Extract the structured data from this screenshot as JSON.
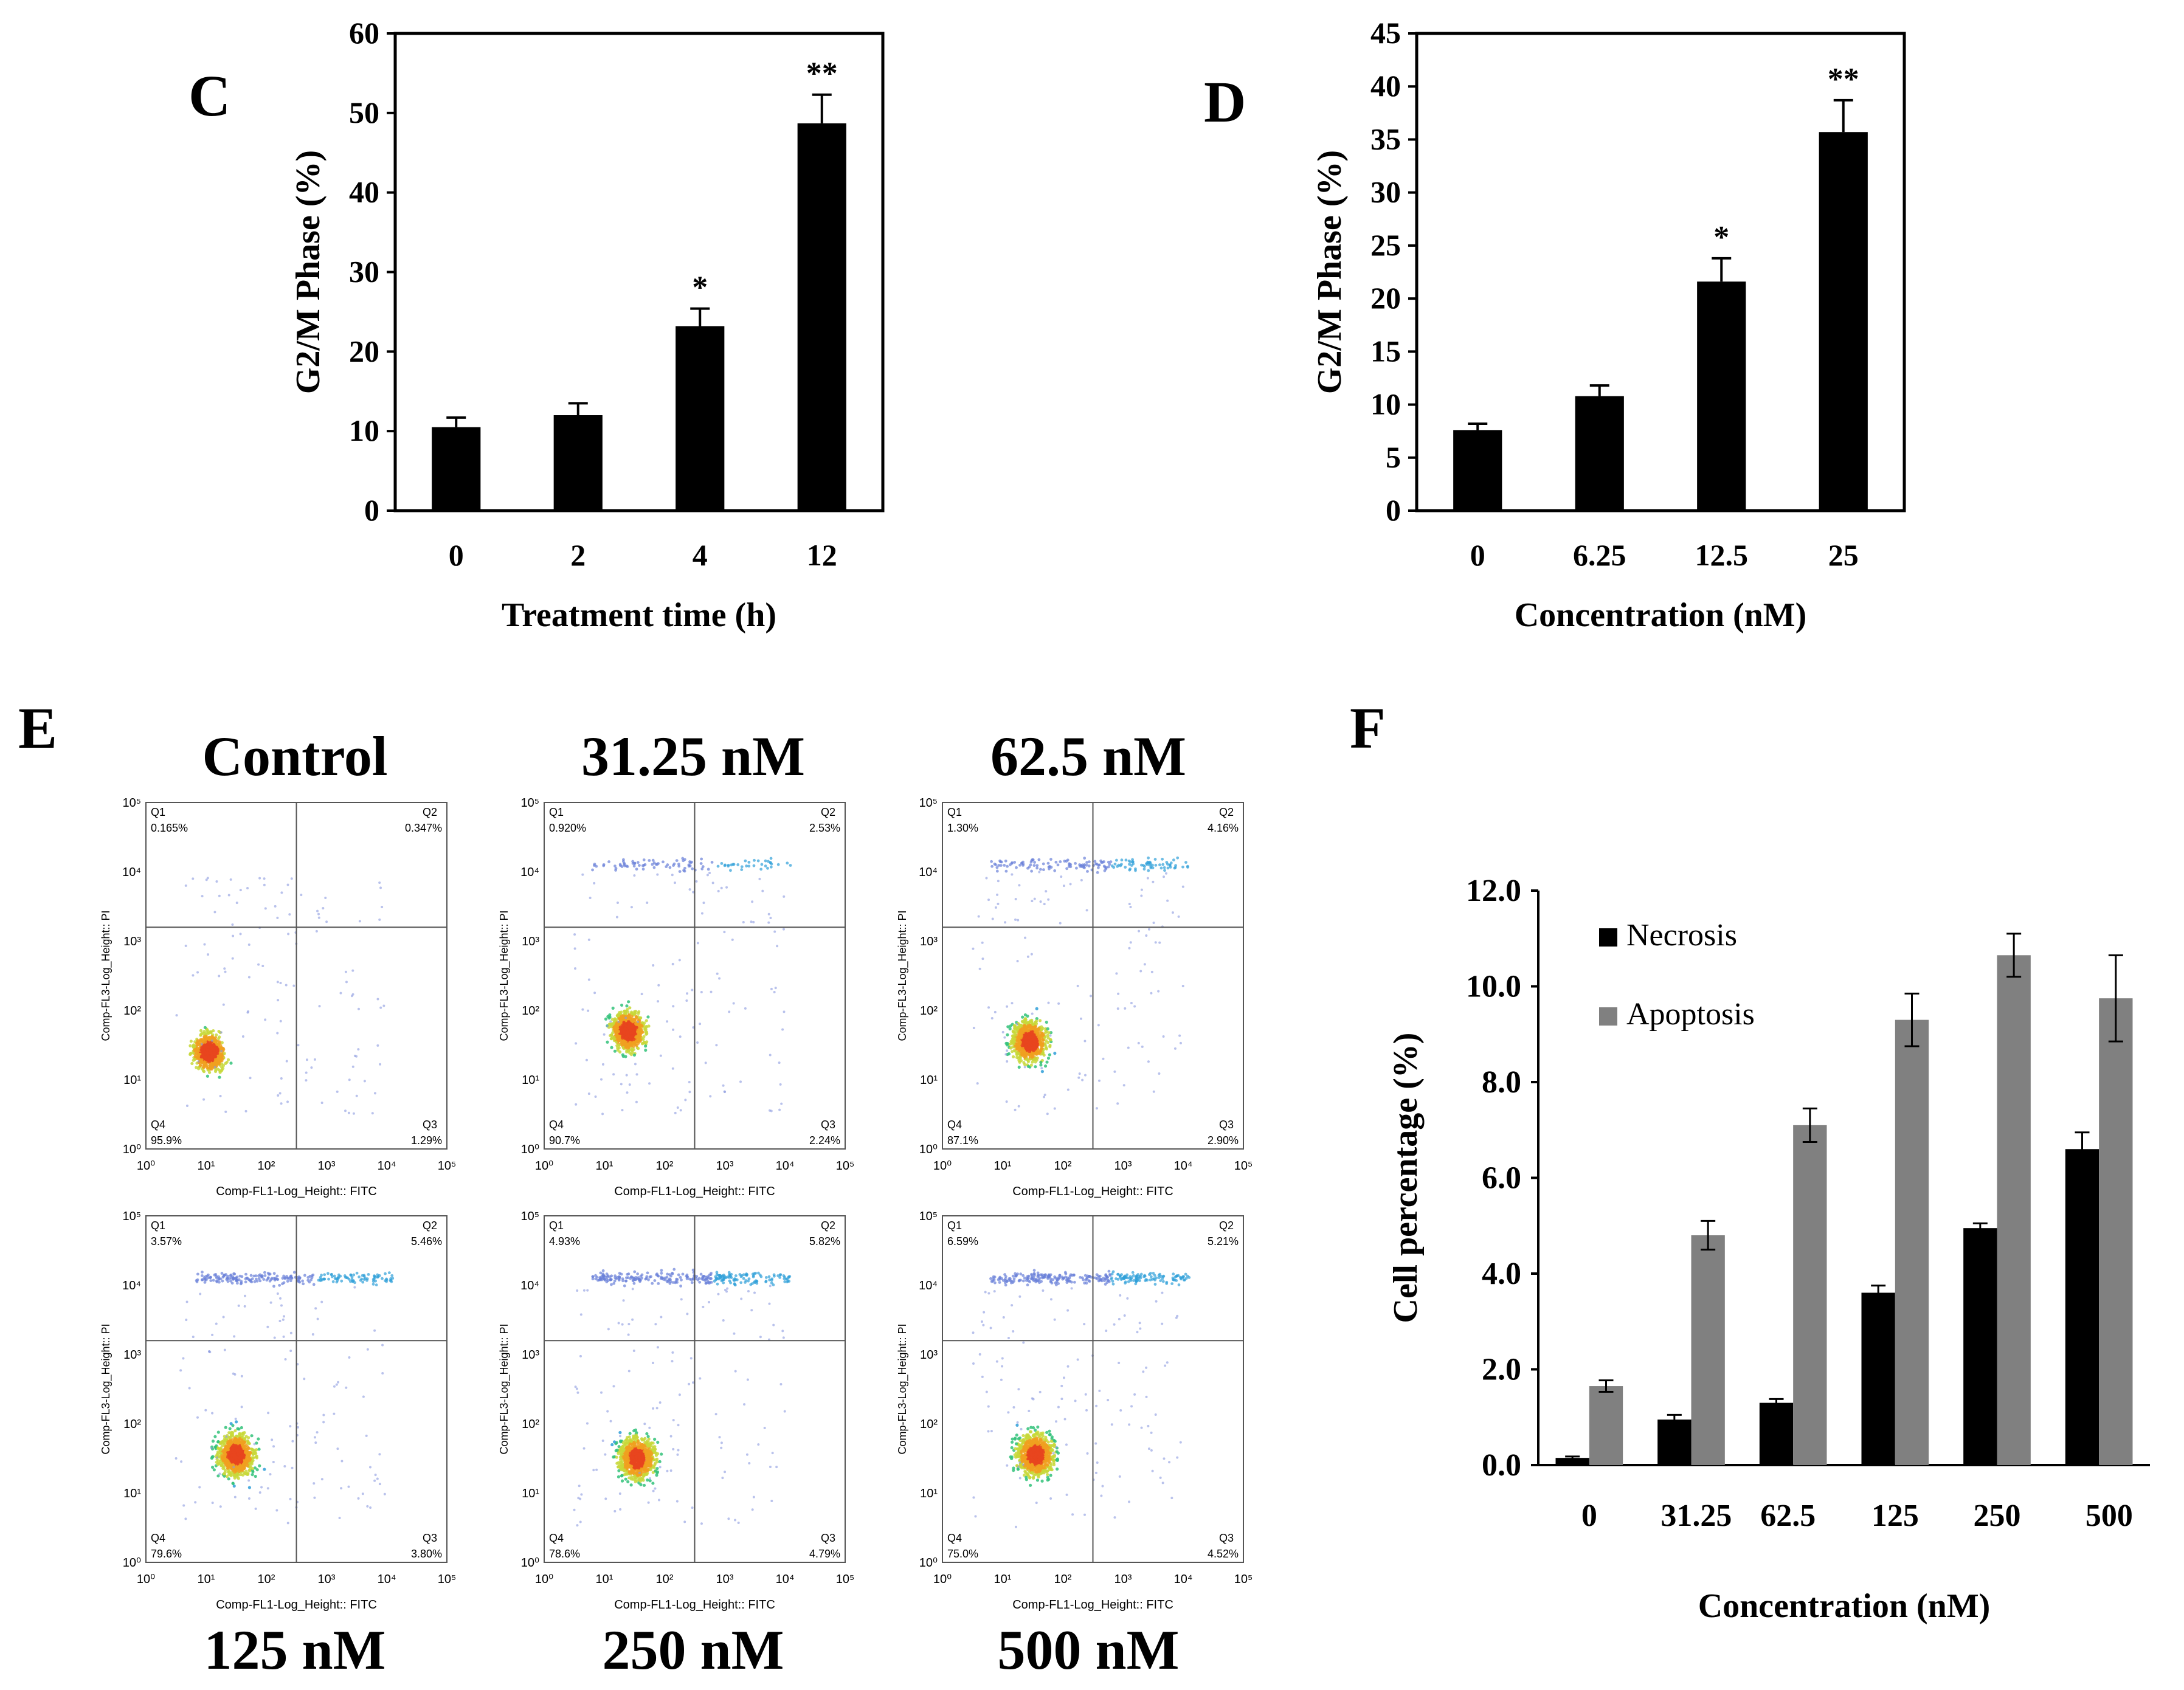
{
  "panels": {
    "C": "C",
    "D": "D",
    "E": "E",
    "F": "F"
  },
  "chart_data": [
    {
      "id": "C",
      "type": "bar",
      "categories": [
        "0",
        "2",
        "4",
        "12"
      ],
      "values": [
        10.5,
        12.0,
        23.2,
        48.7
      ],
      "errors": [
        1.2,
        1.5,
        2.2,
        3.6
      ],
      "significance": [
        "",
        "",
        "*",
        "**"
      ],
      "ylim": [
        0,
        60
      ],
      "yticks": [
        "0",
        "10",
        "20",
        "30",
        "40",
        "50",
        "60"
      ],
      "ytick_values": [
        0,
        10,
        20,
        30,
        40,
        50,
        60
      ],
      "xlabel": "Treatment time (h)",
      "ylabel": "G2/M Phase  (%)",
      "bar_color": "#000000"
    },
    {
      "id": "D",
      "type": "bar",
      "categories": [
        "0",
        "6.25",
        "12.5",
        "25"
      ],
      "values": [
        7.6,
        10.8,
        21.6,
        35.7
      ],
      "errors": [
        0.6,
        1.0,
        2.2,
        3.0
      ],
      "significance": [
        "",
        "",
        "*",
        "**"
      ],
      "ylim": [
        0,
        45
      ],
      "yticks": [
        "0",
        "5",
        "10",
        "15",
        "20",
        "25",
        "30",
        "35",
        "40",
        "45"
      ],
      "ytick_values": [
        0,
        5,
        10,
        15,
        20,
        25,
        30,
        35,
        40,
        45
      ],
      "xlabel": "Concentration (nM)",
      "ylabel": "G2/M Phase  (%)",
      "bar_color": "#000000"
    },
    {
      "id": "E",
      "type": "scatter",
      "description_kind": "flow-cytometry-quadrant",
      "xaxis_label": "Comp-FL1-Log_Height:: FITC",
      "yaxis_label": "Comp-FL3-Log_Height:: PI",
      "log_ticks": [
        "10⁰",
        "10¹",
        "10²",
        "10³",
        "10⁴",
        "10⁵"
      ],
      "quadrant_names": [
        "Q1",
        "Q2",
        "Q3",
        "Q4"
      ],
      "plots": [
        {
          "title": "Control",
          "q1": "0.165%",
          "q2": "0.347%",
          "q3": "1.29%",
          "q4": "95.9%",
          "cx": 1.05,
          "cy": 1.4,
          "spread": 0.35,
          "upper": 0.0
        },
        {
          "title": "31.25 nM",
          "q1": "0.920%",
          "q2": "2.53%",
          "q3": "2.24%",
          "q4": "90.7%",
          "cx": 1.4,
          "cy": 1.7,
          "spread": 0.4,
          "upper": 0.35
        },
        {
          "title": "62.5 nM",
          "q1": "1.30%",
          "q2": "4.16%",
          "q3": "2.90%",
          "q4": "87.1%",
          "cx": 1.45,
          "cy": 1.55,
          "spread": 0.42,
          "upper": 0.55
        },
        {
          "title": "125 nM",
          "q1": "3.57%",
          "q2": "5.46%",
          "q3": "3.80%",
          "q4": "79.6%",
          "cx": 1.5,
          "cy": 1.55,
          "spread": 0.45,
          "upper": 0.8
        },
        {
          "title": "250 nM",
          "q1": "4.93%",
          "q2": "5.82%",
          "q3": "4.79%",
          "q4": "78.6%",
          "cx": 1.55,
          "cy": 1.5,
          "spread": 0.45,
          "upper": 0.95
        },
        {
          "title": "500 nM",
          "q1": "6.59%",
          "q2": "5.21%",
          "q3": "4.52%",
          "q4": "75.0%",
          "cx": 1.55,
          "cy": 1.55,
          "spread": 0.45,
          "upper": 1.0
        }
      ]
    },
    {
      "id": "F",
      "type": "bar",
      "categories": [
        "0",
        "31.25",
        "62.5",
        "125",
        "250",
        "500"
      ],
      "series": [
        {
          "name": "Necrosis",
          "color": "#000000",
          "values": [
            0.15,
            0.95,
            1.3,
            3.6,
            4.95,
            6.6
          ],
          "errors": [
            0.03,
            0.1,
            0.08,
            0.15,
            0.1,
            0.35
          ]
        },
        {
          "name": "Apoptosis",
          "color": "#808080",
          "values": [
            1.65,
            4.8,
            7.1,
            9.3,
            10.65,
            9.75
          ],
          "errors": [
            0.12,
            0.3,
            0.35,
            0.55,
            0.45,
            0.9
          ]
        }
      ],
      "ylim": [
        0,
        12
      ],
      "yticks": [
        "0.0",
        "2.0",
        "4.0",
        "6.0",
        "8.0",
        "10.0",
        "12.0"
      ],
      "ytick_values": [
        0,
        2,
        4,
        6,
        8,
        10,
        12
      ],
      "xlabel": "Concentration (nM)",
      "ylabel": "Cell percentage (%)",
      "legend_position": "top-left"
    }
  ]
}
